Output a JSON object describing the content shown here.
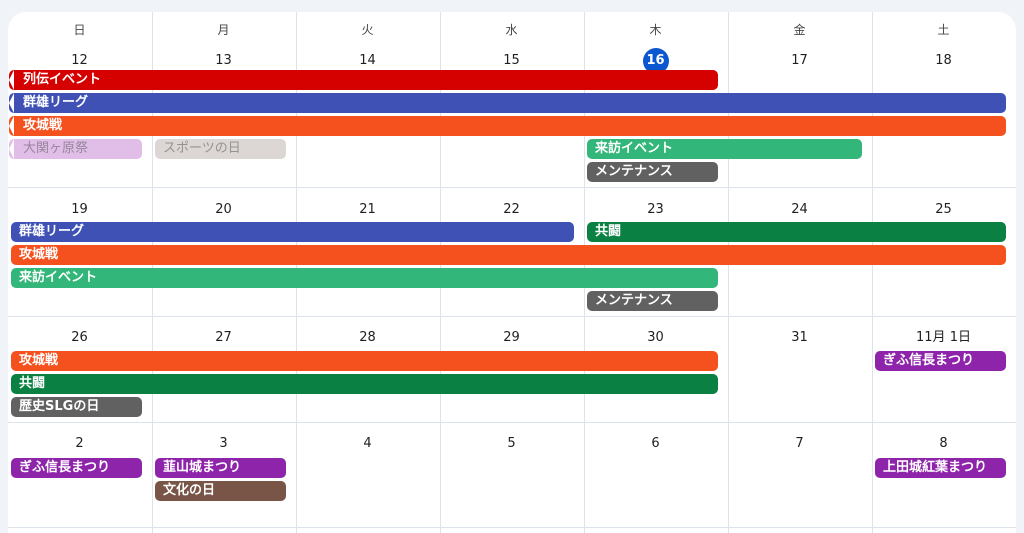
{
  "calendar": {
    "weekdays": [
      "日",
      "月",
      "火",
      "水",
      "木",
      "金",
      "土"
    ],
    "weeks": [
      {
        "days": [
          "12",
          "13",
          "14",
          "15",
          "16",
          "17",
          "18"
        ],
        "today_index": 4
      },
      {
        "days": [
          "19",
          "20",
          "21",
          "22",
          "23",
          "24",
          "25"
        ]
      },
      {
        "days": [
          "26",
          "27",
          "28",
          "29",
          "30",
          "31",
          "11月 1日"
        ]
      },
      {
        "days": [
          "2",
          "3",
          "4",
          "5",
          "6",
          "7",
          "8"
        ]
      }
    ],
    "events": [
      {
        "week": 0,
        "row": 0,
        "start": 0,
        "end": 4,
        "title": "列伝イベント",
        "color": "#d50000",
        "continued": true
      },
      {
        "week": 0,
        "row": 1,
        "start": 0,
        "end": 6,
        "title": "群雄リーグ",
        "color": "#3f51b5",
        "continued": true
      },
      {
        "week": 0,
        "row": 2,
        "start": 0,
        "end": 6,
        "title": "攻城戦",
        "color": "#f4511e",
        "continued": true
      },
      {
        "week": 0,
        "row": 3,
        "start": 0,
        "end": 0,
        "title": "大関ヶ原祭",
        "color": "#e1bee7",
        "continued": true,
        "faded": true
      },
      {
        "week": 0,
        "row": 3,
        "start": 1,
        "end": 1,
        "title": "スポーツの日",
        "color": "#dcd7d5",
        "faded": true
      },
      {
        "week": 0,
        "row": 3,
        "start": 4,
        "end": 5,
        "title": "来訪イベント",
        "color": "#33b679"
      },
      {
        "week": 0,
        "row": 4,
        "start": 4,
        "end": 4,
        "title": "メンテナンス",
        "color": "#616161"
      },
      {
        "week": 1,
        "row": 0,
        "start": 0,
        "end": 3,
        "title": "群雄リーグ",
        "color": "#3f51b5"
      },
      {
        "week": 1,
        "row": 0,
        "start": 4,
        "end": 6,
        "title": "共闘",
        "color": "#0b8043"
      },
      {
        "week": 1,
        "row": 1,
        "start": 0,
        "end": 6,
        "title": "攻城戦",
        "color": "#f4511e"
      },
      {
        "week": 1,
        "row": 2,
        "start": 0,
        "end": 4,
        "title": "来訪イベント",
        "color": "#33b679"
      },
      {
        "week": 1,
        "row": 3,
        "start": 4,
        "end": 4,
        "title": "メンテナンス",
        "color": "#616161"
      },
      {
        "week": 2,
        "row": 0,
        "start": 0,
        "end": 4,
        "title": "攻城戦",
        "color": "#f4511e"
      },
      {
        "week": 2,
        "row": 0,
        "start": 6,
        "end": 6,
        "title": "ぎふ信長まつり",
        "color": "#8e24aa"
      },
      {
        "week": 2,
        "row": 1,
        "start": 0,
        "end": 4,
        "title": "共闘",
        "color": "#0b8043"
      },
      {
        "week": 2,
        "row": 2,
        "start": 0,
        "end": 0,
        "title": "歴史SLGの日",
        "color": "#616161"
      },
      {
        "week": 3,
        "row": 0,
        "start": 0,
        "end": 0,
        "title": "ぎふ信長まつり",
        "color": "#8e24aa"
      },
      {
        "week": 3,
        "row": 0,
        "start": 1,
        "end": 1,
        "title": "韮山城まつり",
        "color": "#8e24aa"
      },
      {
        "week": 3,
        "row": 0,
        "start": 6,
        "end": 6,
        "title": "上田城紅葉まつり",
        "color": "#8e24aa"
      },
      {
        "week": 3,
        "row": 1,
        "start": 1,
        "end": 1,
        "title": "文化の日",
        "color": "#795548"
      }
    ]
  }
}
